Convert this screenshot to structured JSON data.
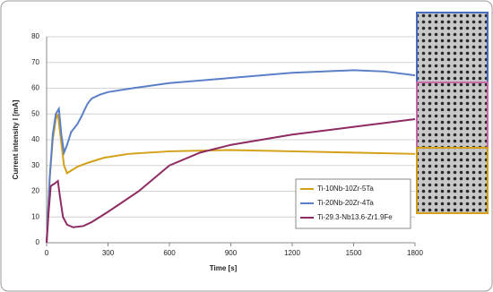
{
  "chart_data": {
    "type": "line",
    "x_label": "Time [s]",
    "y_label": "Current intensity I [mA]",
    "xlim": [
      0,
      1800
    ],
    "xticks": [
      0,
      300,
      600,
      900,
      1200,
      1500,
      1800
    ],
    "ylim": [
      0,
      80
    ],
    "yticks": [
      0,
      10,
      20,
      30,
      40,
      50,
      60,
      70,
      80
    ],
    "grid": true,
    "legend_position": "lower right",
    "series": [
      {
        "name": "Ti-10Nb-10Zr-5Ta",
        "color": "#d4a017",
        "x": [
          0,
          15,
          30,
          45,
          55,
          70,
          85,
          100,
          120,
          150,
          200,
          280,
          400,
          600,
          900,
          1200,
          1500,
          1800
        ],
        "values": [
          0,
          25,
          40,
          48,
          50,
          40,
          30,
          27,
          28,
          29.5,
          31,
          33,
          34.5,
          35.5,
          36,
          35.5,
          35,
          34.5
        ]
      },
      {
        "name": "Ti-20Nb-20Zr-4Ta",
        "color": "#5b80c8",
        "x": [
          0,
          15,
          30,
          45,
          60,
          72,
          85,
          100,
          120,
          150,
          170,
          200,
          220,
          260,
          300,
          420,
          600,
          900,
          1200,
          1500,
          1650,
          1800
        ],
        "values": [
          0,
          25,
          42,
          50,
          52,
          42,
          35,
          38,
          43,
          46,
          49,
          54,
          56,
          57.5,
          58.5,
          60,
          62,
          64,
          66,
          67,
          66.5,
          65
        ]
      },
      {
        "name": "Ti-29.3-Nb13.6-Zr1.9Fe",
        "color": "#8e2b62",
        "x": [
          0,
          10,
          20,
          40,
          55,
          65,
          80,
          100,
          130,
          180,
          220,
          300,
          450,
          600,
          750,
          900,
          1200,
          1500,
          1800
        ],
        "values": [
          0,
          12,
          22,
          23,
          24,
          18,
          10,
          7,
          6,
          6.5,
          8,
          12,
          20,
          30,
          35,
          38,
          42,
          45,
          48
        ]
      }
    ]
  }
}
